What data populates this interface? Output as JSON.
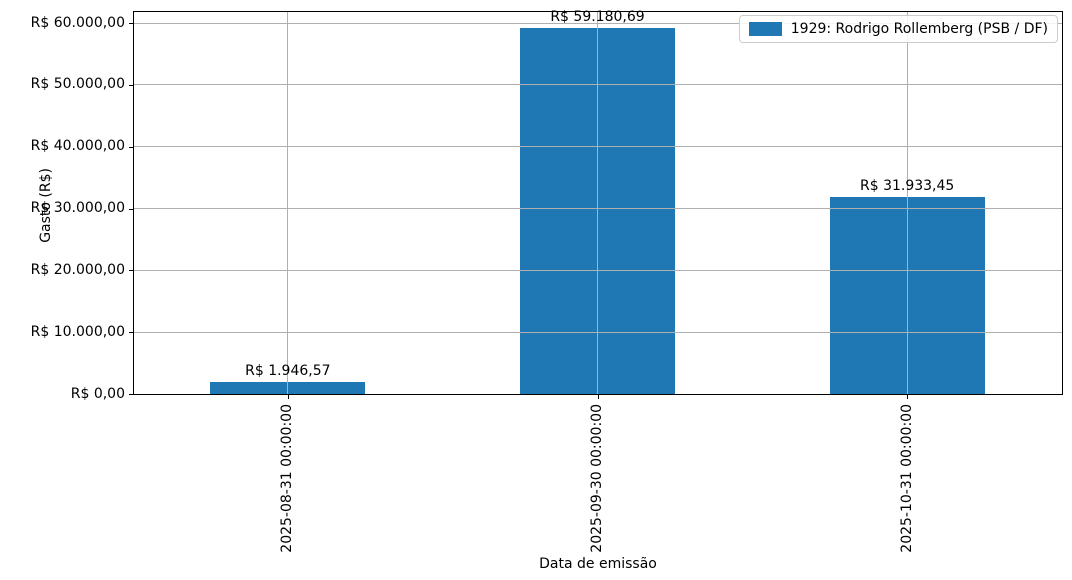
{
  "chart_data": {
    "type": "bar",
    "title": "",
    "xlabel": "Data de emissão",
    "ylabel": "Gasto (R$)",
    "categories": [
      "2025-08-31 00:00:00",
      "2025-09-30 00:00:00",
      "2025-10-31 00:00:00"
    ],
    "series": [
      {
        "name": "1929: Rodrigo Rollemberg (PSB / DF)",
        "color": "#1f77b4",
        "values": [
          1946.57,
          59180.69,
          31933.45
        ]
      }
    ],
    "bar_value_labels": [
      "R$ 1.946,57",
      "R$ 59.180,69",
      "R$ 31.933,45"
    ],
    "y_ticks": [
      {
        "value": 0,
        "label": "R$ 0,00"
      },
      {
        "value": 10000,
        "label": "R$ 10.000,00"
      },
      {
        "value": 20000,
        "label": "R$ 20.000,00"
      },
      {
        "value": 30000,
        "label": "R$ 30.000,00"
      },
      {
        "value": 40000,
        "label": "R$ 40.000,00"
      },
      {
        "value": 50000,
        "label": "R$ 50.000,00"
      },
      {
        "value": 60000,
        "label": "R$ 60.000,00"
      }
    ],
    "ylim": [
      0,
      61940
    ],
    "grid": true,
    "legend": {
      "position": "upper right"
    }
  },
  "colors": {
    "bar": "#1f77b4",
    "grid": "#b0b0b0",
    "axis": "#000000",
    "legend_border": "#cccccc",
    "background": "#ffffff"
  }
}
